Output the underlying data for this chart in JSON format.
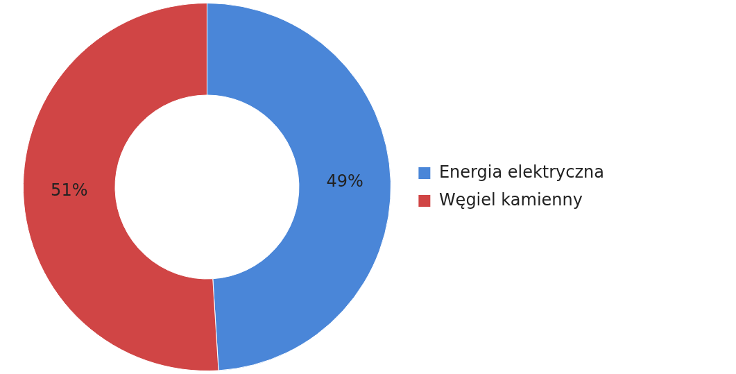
{
  "chart_data": {
    "type": "donut",
    "categories": [
      "Energia elektryczna",
      "Węgiel kamienny"
    ],
    "values": [
      49,
      51
    ],
    "colors": [
      "#4a86d8",
      "#d04545"
    ],
    "value_labels": [
      "49%",
      "51%"
    ],
    "legend": "right"
  }
}
